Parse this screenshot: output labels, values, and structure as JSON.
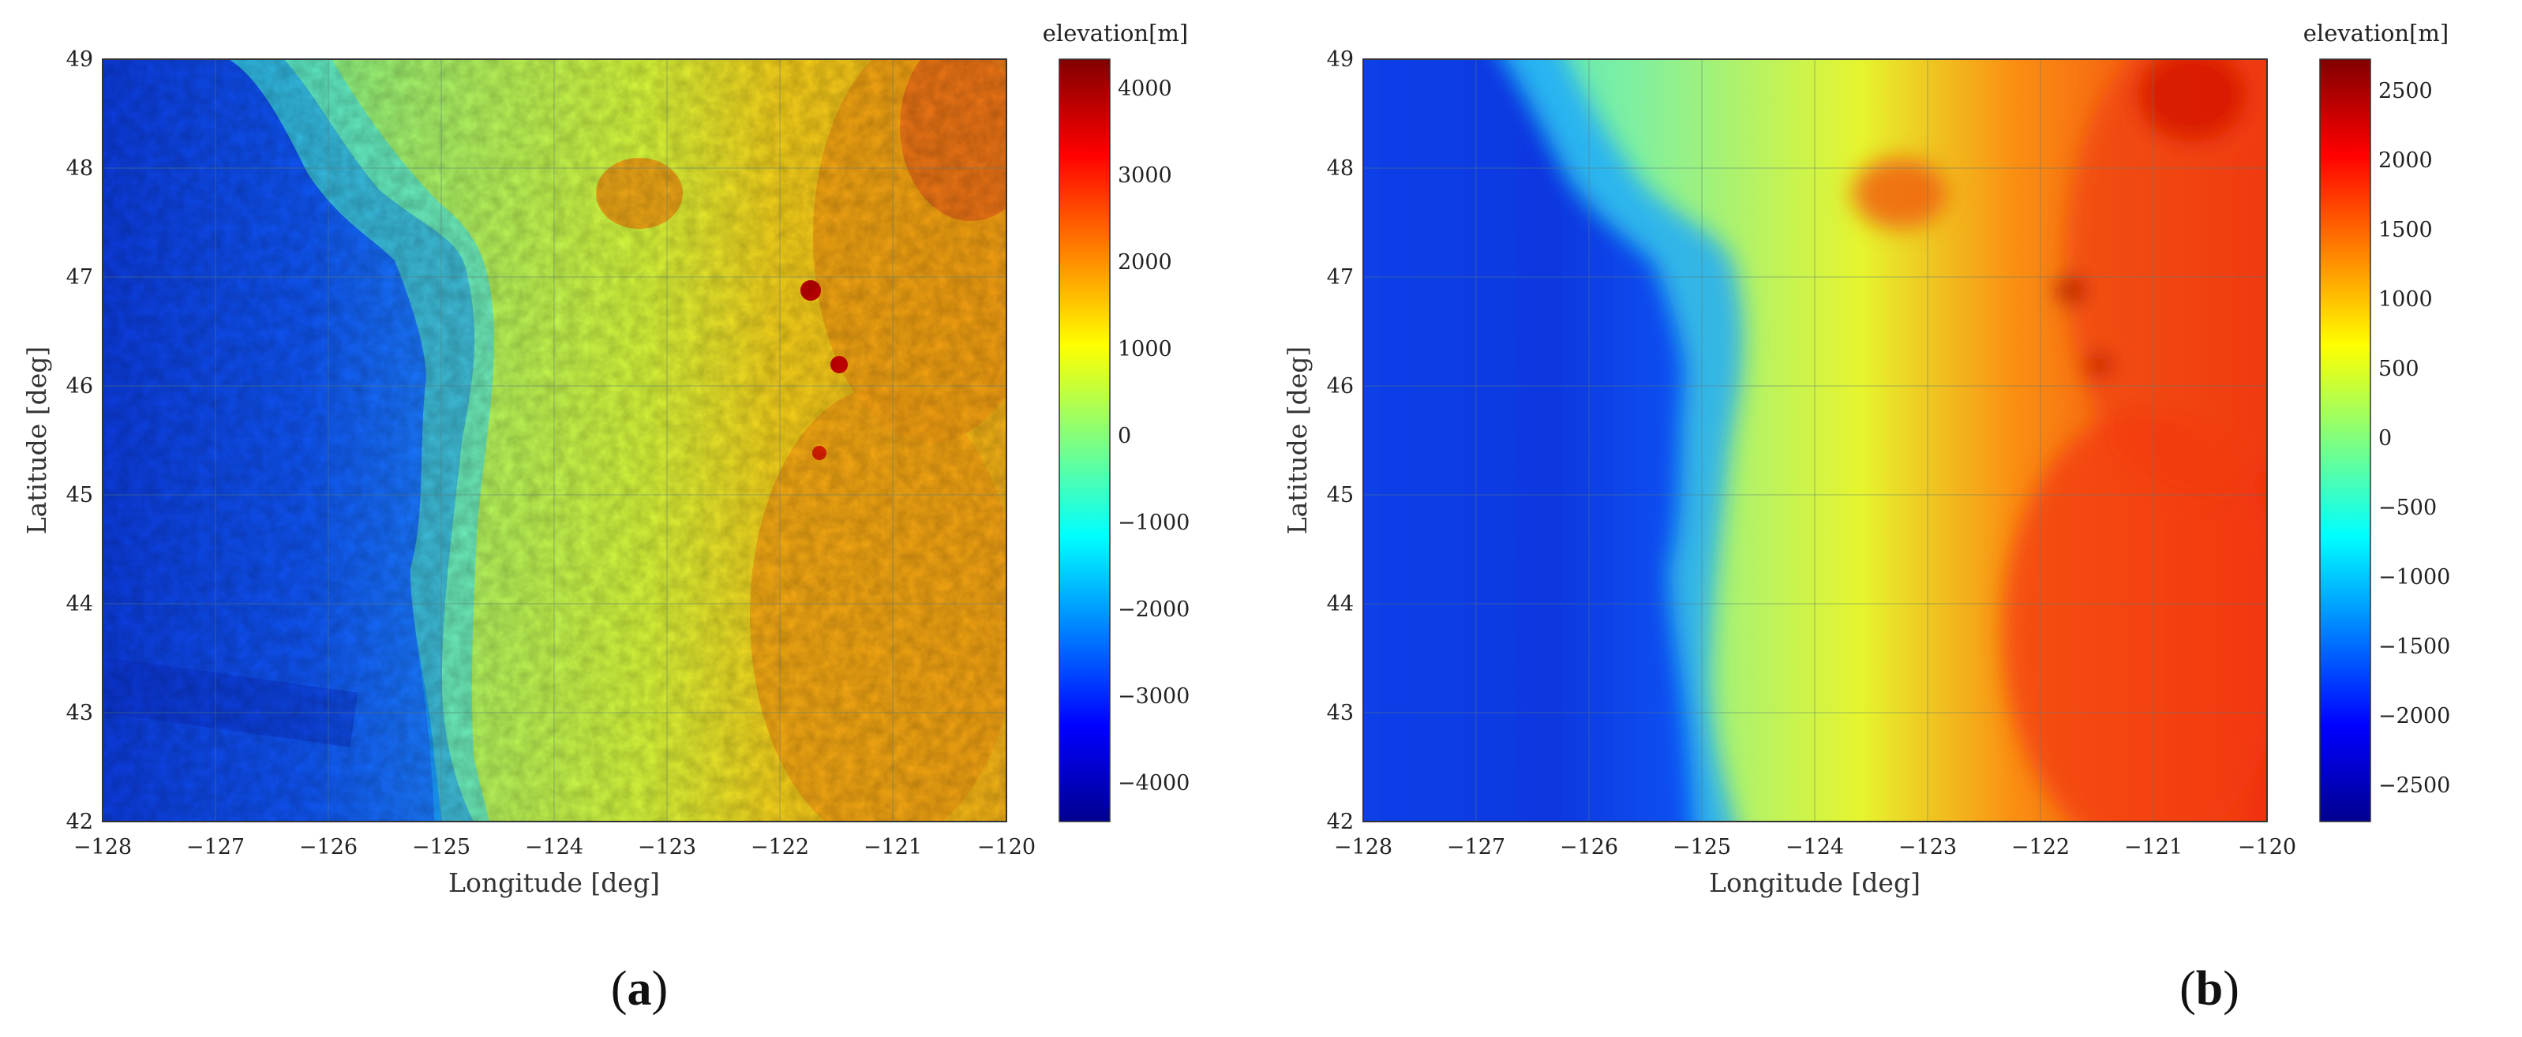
{
  "figure": {
    "panels": [
      {
        "label_open": "(",
        "label_letter": "a",
        "label_close": ")",
        "xlabel": "Longitude [deg]",
        "ylabel": "Latitude [deg]",
        "colorbar_title": "elevation[m]",
        "xticks": [
          "−128",
          "−127",
          "−126",
          "−125",
          "−124",
          "−123",
          "−122",
          "−121",
          "−120"
        ],
        "yticks": [
          "49",
          "48",
          "47",
          "46",
          "45",
          "44",
          "43",
          "42"
        ],
        "colorbar_ticks": [
          "4000",
          "3000",
          "2000",
          "1000",
          "0",
          "−1000",
          "−2000",
          "−3000",
          "−4000"
        ],
        "colorbar_range": [
          -4500,
          4300
        ],
        "colormap": "jet",
        "smoothing": "none"
      },
      {
        "label_open": "(",
        "label_letter": "b",
        "label_close": ")",
        "xlabel": "Longitude [deg]",
        "ylabel": "Latitude [deg]",
        "colorbar_title": "elevation[m]",
        "xticks": [
          "−128",
          "−127",
          "−126",
          "−125",
          "−124",
          "−123",
          "−122",
          "−121",
          "−120"
        ],
        "yticks": [
          "49",
          "48",
          "47",
          "46",
          "45",
          "44",
          "43",
          "42"
        ],
        "colorbar_ticks": [
          "2500",
          "2000",
          "1500",
          "1000",
          "500",
          "0",
          "−500",
          "−1000",
          "−1500",
          "−2000",
          "−2500"
        ],
        "colorbar_range": [
          -2700,
          2750
        ],
        "colormap": "jet",
        "smoothing": "blurred"
      }
    ],
    "map_extent": {
      "lon": [
        -128,
        -120
      ],
      "lat": [
        42,
        49
      ]
    },
    "colors": {
      "jet_dark_blue": "#00008f",
      "jet_blue": "#0000ff",
      "jet_cyan": "#00ffff",
      "jet_yellow": "#ffff00",
      "jet_red": "#ff0000",
      "jet_dark_red": "#800000"
    }
  }
}
